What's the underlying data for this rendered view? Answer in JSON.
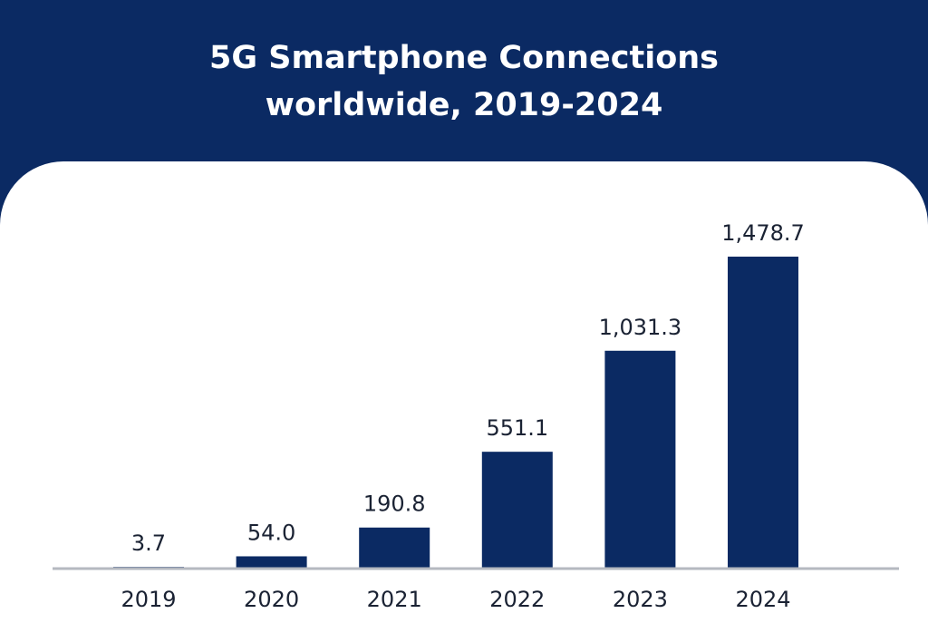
{
  "header": {
    "title": "5G Smartphone Connections\nworldwide, 2019-2024"
  },
  "colors": {
    "header_background": "#0b2a63",
    "bar": "#0b2a63",
    "baseline": "#b5b9c0",
    "text": "#1a2233"
  },
  "chart_data": {
    "type": "bar",
    "title": "5G Smartphone Connections worldwide, 2019-2024",
    "xlabel": "",
    "ylabel": "",
    "categories": [
      "2019",
      "2020",
      "2021",
      "2022",
      "2023",
      "2024"
    ],
    "values": [
      3.7,
      54.0,
      190.8,
      551.1,
      1031.3,
      1478.7
    ],
    "value_labels": [
      "3.7",
      "54.0",
      "190.8",
      "551.1",
      "1,031.3",
      "1,478.7"
    ],
    "ylim": [
      0,
      1478.7
    ],
    "grid": false,
    "legend": "none"
  }
}
